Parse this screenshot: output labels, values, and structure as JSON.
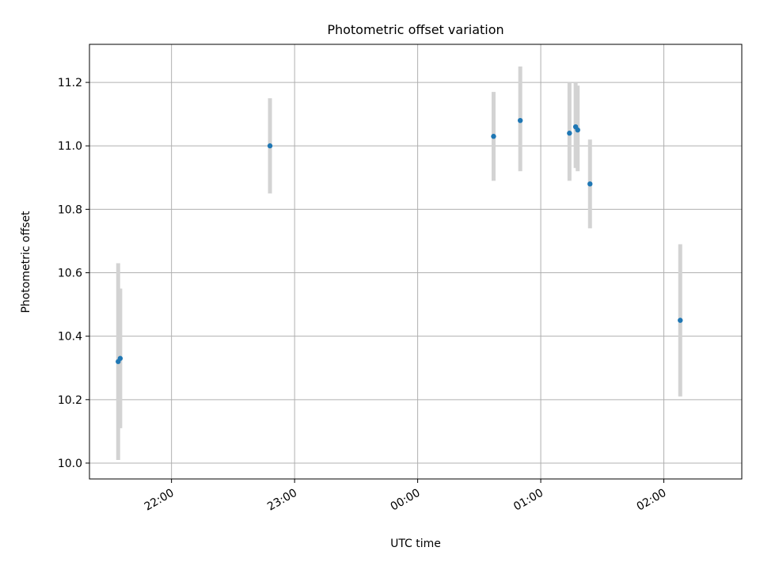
{
  "chart_data": {
    "type": "scatter",
    "title": "Photometric offset variation",
    "xlabel": "UTC time",
    "ylabel": "Photometric offset",
    "grid": true,
    "xlim": [
      "21:20",
      "02:38"
    ],
    "ylim": [
      9.95,
      11.32
    ],
    "x_ticks": [
      "22:00",
      "23:00",
      "00:00",
      "01:00",
      "02:00"
    ],
    "y_ticks": [
      "10.0",
      "10.2",
      "10.4",
      "10.6",
      "10.8",
      "11.0",
      "11.2"
    ],
    "colors": {
      "point": "#1f77b4",
      "errorbar": "#d3d3d3",
      "grid": "#b0b0b0"
    },
    "points": [
      {
        "x": "21:34",
        "y": 10.32,
        "yerr_low": 10.01,
        "yerr_high": 10.63
      },
      {
        "x": "21:35",
        "y": 10.33,
        "yerr_low": 10.11,
        "yerr_high": 10.55
      },
      {
        "x": "22:48",
        "y": 11.0,
        "yerr_low": 10.85,
        "yerr_high": 11.15
      },
      {
        "x": "00:37",
        "y": 11.03,
        "yerr_low": 10.89,
        "yerr_high": 11.17
      },
      {
        "x": "00:50",
        "y": 11.08,
        "yerr_low": 10.92,
        "yerr_high": 11.25
      },
      {
        "x": "01:14",
        "y": 11.04,
        "yerr_low": 10.89,
        "yerr_high": 11.2
      },
      {
        "x": "01:17",
        "y": 11.06,
        "yerr_low": 10.93,
        "yerr_high": 11.2
      },
      {
        "x": "01:18",
        "y": 11.05,
        "yerr_low": 10.92,
        "yerr_high": 11.19
      },
      {
        "x": "01:24",
        "y": 10.88,
        "yerr_low": 10.74,
        "yerr_high": 11.02
      },
      {
        "x": "02:08",
        "y": 10.45,
        "yerr_low": 10.21,
        "yerr_high": 10.69
      }
    ]
  }
}
